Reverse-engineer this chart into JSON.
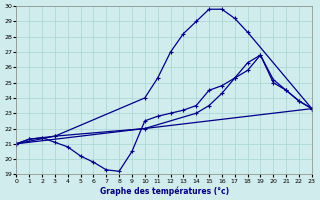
{
  "xlabel": "Graphe des températures (°c)",
  "background_color": "#d0ecec",
  "grid_color": "#a8d4d4",
  "line_color": "#00008b",
  "ylim": [
    19,
    30
  ],
  "xlim": [
    0,
    23
  ],
  "yticks": [
    19,
    20,
    21,
    22,
    23,
    24,
    25,
    26,
    27,
    28,
    29,
    30
  ],
  "xticks": [
    0,
    1,
    2,
    3,
    4,
    5,
    6,
    7,
    8,
    9,
    10,
    11,
    12,
    13,
    14,
    15,
    16,
    17,
    18,
    19,
    20,
    21,
    22,
    23
  ],
  "series": [
    {
      "x": [
        0,
        1,
        2,
        3,
        10,
        11,
        12,
        13,
        14,
        15,
        16,
        17,
        18,
        23
      ],
      "y": [
        21.0,
        21.3,
        21.4,
        21.5,
        24.0,
        25.3,
        27.0,
        28.2,
        29.0,
        29.8,
        29.8,
        29.2,
        28.3,
        23.3
      ]
    },
    {
      "x": [
        0,
        3,
        10,
        14,
        15,
        16,
        17,
        18,
        19,
        20,
        21,
        22,
        23
      ],
      "y": [
        21.0,
        21.5,
        22.0,
        23.0,
        23.5,
        24.3,
        25.3,
        26.3,
        26.8,
        25.0,
        24.5,
        23.8,
        23.3
      ]
    },
    {
      "x": [
        0,
        23
      ],
      "y": [
        21.0,
        23.3
      ]
    },
    {
      "x": [
        0,
        1,
        2,
        3,
        4,
        5,
        6,
        7,
        8,
        9,
        10,
        11,
        12,
        13,
        14,
        15,
        16,
        17,
        18,
        19,
        20,
        21,
        22,
        23
      ],
      "y": [
        21.0,
        21.3,
        21.4,
        21.1,
        20.8,
        20.2,
        19.8,
        19.3,
        19.2,
        20.5,
        22.5,
        22.8,
        23.0,
        23.2,
        23.5,
        24.5,
        24.8,
        25.3,
        25.8,
        26.8,
        25.2,
        24.5,
        23.8,
        23.3
      ]
    }
  ]
}
